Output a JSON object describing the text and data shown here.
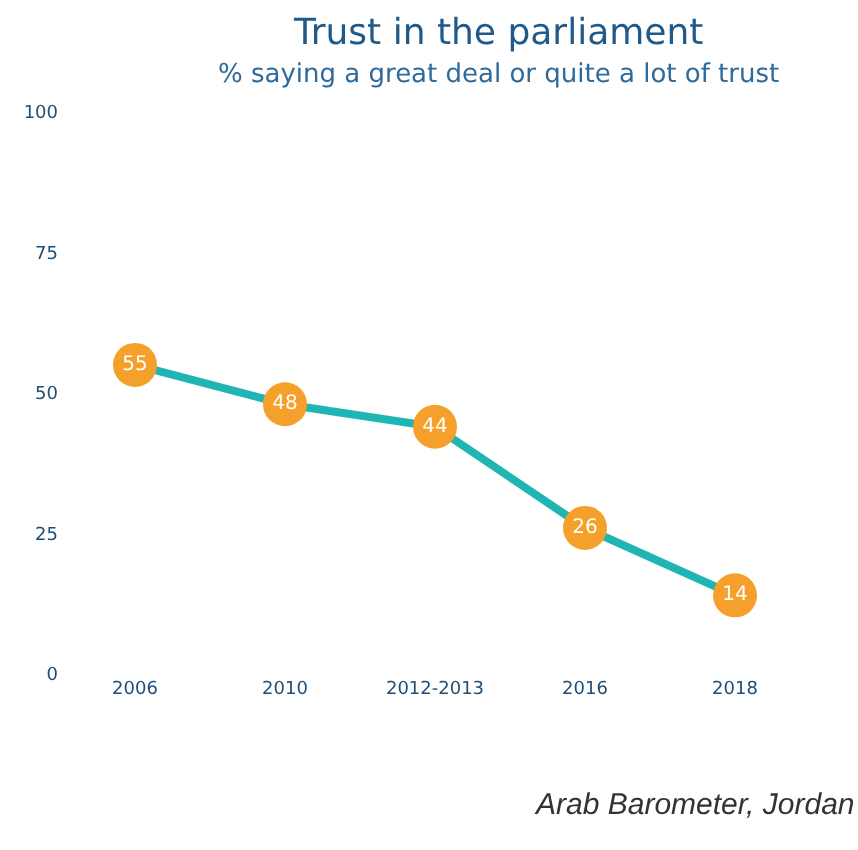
{
  "chart_data": {
    "type": "line",
    "title": "Trust in the parliament",
    "subtitle": "% saying a great deal or quite a lot of trust",
    "categories": [
      "2006",
      "2010",
      "2012-2013",
      "2016",
      "2018"
    ],
    "series": [
      {
        "color": "#1fb5b5",
        "colors": [
          "#f5a02a",
          "#f5a02a",
          "#f5a02a",
          "#f5a02a",
          "#f5a02a"
        ],
        "values": [
          55,
          48,
          44,
          26,
          14
        ]
      }
    ],
    "marker": "circle",
    "data_labels": true,
    "line_style": "solid",
    "ylim": [
      0,
      100
    ],
    "yticks": [
      0,
      25,
      50,
      75,
      100
    ],
    "annotations": [
      "Arab Barometer, Jordan"
    ]
  }
}
